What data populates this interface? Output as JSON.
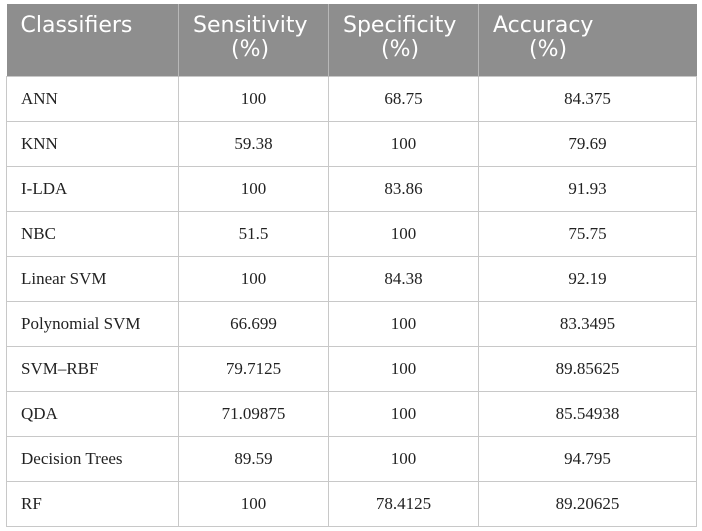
{
  "table": {
    "headers": [
      {
        "line1": "Classifiers",
        "line2": ""
      },
      {
        "line1": "Sensitivity",
        "line2": "(%)"
      },
      {
        "line1": "Specificity",
        "line2": "(%)"
      },
      {
        "line1": "Accuracy",
        "line2": "(%)"
      }
    ],
    "rows": [
      [
        "ANN",
        "100",
        "68.75",
        "84.375"
      ],
      [
        "KNN",
        "59.38",
        "100",
        "79.69"
      ],
      [
        "I-LDA",
        "100",
        "83.86",
        "91.93"
      ],
      [
        "NBC",
        "51.5",
        "100",
        "75.75"
      ],
      [
        "Linear SVM",
        "100",
        "84.38",
        "92.19"
      ],
      [
        "Polynomial SVM",
        "66.699",
        "100",
        "83.3495"
      ],
      [
        "SVM–RBF",
        "79.7125",
        "100",
        "89.85625"
      ],
      [
        "QDA",
        "71.09875",
        "100",
        "85.54938"
      ],
      [
        "Decision Trees",
        "89.59",
        "100",
        "94.795"
      ],
      [
        "RF",
        "100",
        "78.4125",
        "89.20625"
      ]
    ]
  },
  "colors": {
    "header_bg": "#8e8e8e",
    "header_text": "#ffffff",
    "grid": "#c8c8c8"
  }
}
